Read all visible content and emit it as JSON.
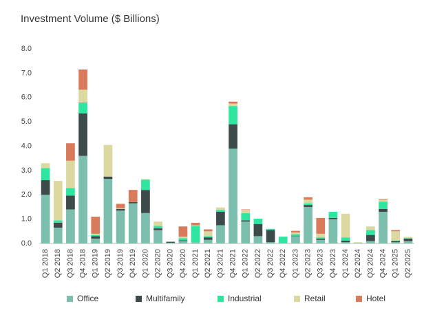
{
  "chart_data": {
    "type": "stacked-bar",
    "title": "Investment Volume ($ Billions)",
    "categories": [
      "Q1 2018",
      "Q2 2018",
      "Q3 2018",
      "Q4 2018",
      "Q1 2019",
      "Q2 2019",
      "Q3 2019",
      "Q4 2019",
      "Q1 2020",
      "Q2 2020",
      "Q3 2020",
      "Q4 2020",
      "Q1 2021",
      "Q2 2021",
      "Q3 2021",
      "Q4 2021",
      "Q1 2022",
      "Q2 2022",
      "Q3 2022",
      "Q4 2022",
      "Q1 2023",
      "Q2 2023",
      "Q3 2023",
      "Q4 2023",
      "Q1 2024",
      "Q2 2024",
      "Q3 2024",
      "Q4 2024",
      "Q1 2025",
      "Q2 2025"
    ],
    "series": [
      {
        "name": "Office",
        "color": "#7dbfae",
        "values": [
          2.0,
          0.65,
          1.4,
          3.6,
          0.2,
          2.65,
          1.35,
          1.65,
          1.25,
          0.55,
          0.03,
          0.1,
          0.05,
          0.15,
          0.75,
          3.9,
          0.9,
          0.3,
          0.05,
          0.02,
          0.3,
          1.5,
          0.15,
          1.0,
          0.05,
          0.02,
          0.1,
          1.3,
          0.05,
          0.1
        ]
      },
      {
        "name": "Multifamily",
        "color": "#3d4a4a",
        "values": [
          0.6,
          0.2,
          0.57,
          1.75,
          0.1,
          0.1,
          0.07,
          0.05,
          0.95,
          0.07,
          0.04,
          0.03,
          0,
          0.1,
          0.55,
          1.0,
          0.05,
          0.5,
          0.5,
          0,
          0.02,
          0.08,
          0.05,
          0.05,
          0.07,
          0,
          0.25,
          0.12,
          0.05,
          0.1
        ]
      },
      {
        "name": "Industrial",
        "color": "#2ee6a0",
        "values": [
          0.5,
          0.1,
          0.31,
          0.45,
          0.05,
          0,
          0,
          0,
          0.42,
          0.1,
          0,
          0.09,
          0.67,
          0.05,
          0.08,
          0.75,
          0.3,
          0.22,
          0.05,
          0.26,
          0.06,
          0.07,
          0.05,
          0.25,
          0.13,
          0,
          0.2,
          0.3,
          0.02,
          0.02
        ]
      },
      {
        "name": "Retail",
        "color": "#dcd9a0",
        "values": [
          0.2,
          1.62,
          1.12,
          0.52,
          0.05,
          1.3,
          0.03,
          0,
          0.03,
          0.18,
          0,
          0.06,
          0.03,
          0.2,
          0.1,
          0.1,
          0.13,
          0,
          0,
          0,
          0.07,
          0.15,
          0.15,
          0,
          0.97,
          0.03,
          0.15,
          0.08,
          0.38,
          0.05
        ]
      },
      {
        "name": "Hotel",
        "color": "#d97a5a",
        "values": [
          0,
          0,
          0.72,
          0.83,
          0.7,
          0,
          0.18,
          0.5,
          0,
          0,
          0,
          0.42,
          0.1,
          0.08,
          0,
          0.08,
          0.02,
          0,
          0,
          0,
          0.07,
          0.1,
          0.65,
          0,
          0,
          0,
          0,
          0.03,
          0.05,
          0
        ]
      }
    ],
    "ylim": [
      0,
      8
    ],
    "yticks": [
      {
        "value": 0,
        "label": "0.0"
      },
      {
        "value": 1,
        "label": "1.0"
      },
      {
        "value": 2,
        "label": "2.0"
      },
      {
        "value": 3,
        "label": "3.0"
      },
      {
        "value": 4,
        "label": "4.0"
      },
      {
        "value": 5,
        "label": "5.0"
      },
      {
        "value": 6,
        "label": "6.0"
      },
      {
        "value": 7,
        "label": "7.0"
      },
      {
        "value": 8,
        "label": "8.0"
      }
    ],
    "grid": false
  }
}
